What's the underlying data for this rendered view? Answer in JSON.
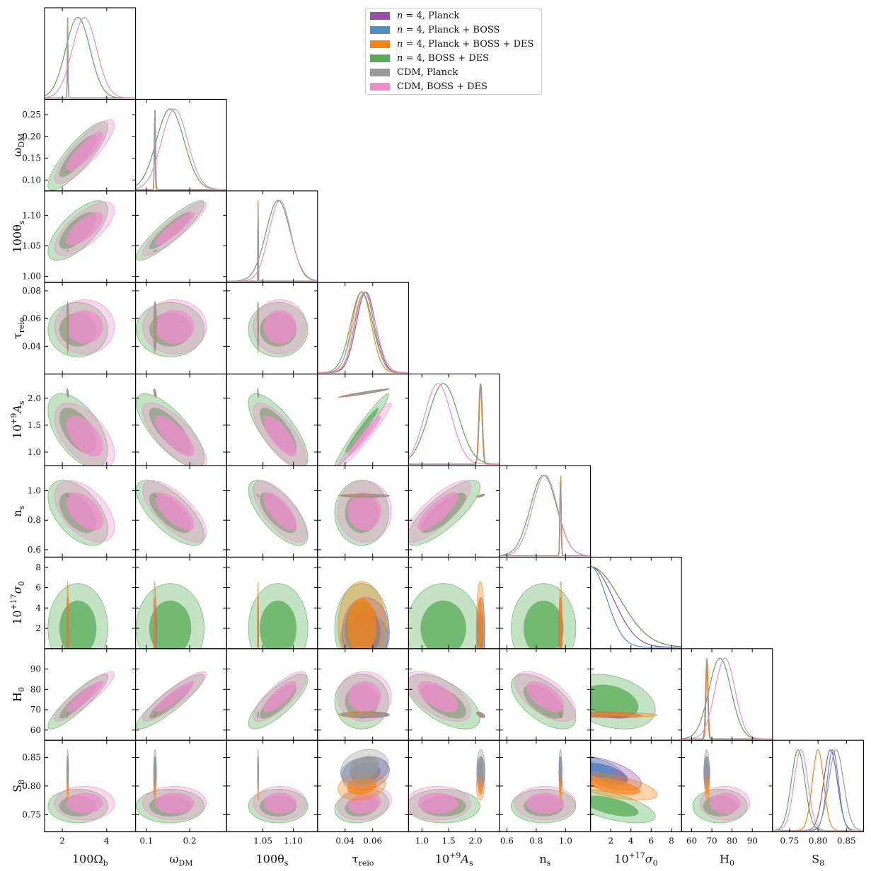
{
  "chart_data": {
    "type": "corner",
    "title": "",
    "parameters": [
      {
        "label": "100Ω_b",
        "range": [
          1.2,
          5.3
        ],
        "ticks": [
          2,
          4
        ]
      },
      {
        "label": "ω_DM",
        "range": [
          0.075,
          0.285
        ],
        "ticks": [
          0.1,
          0.2
        ]
      },
      {
        "label": "100θ_s",
        "range": [
          0.99,
          1.14
        ],
        "ticks": [
          1.05,
          1.1
        ]
      },
      {
        "label": "τ_reio",
        "range": [
          0.02,
          0.086
        ],
        "ticks": [
          0.04,
          0.06
        ]
      },
      {
        "label": "10^{+9}A_s",
        "range": [
          0.75,
          2.45
        ],
        "ticks": [
          1.0,
          1.5,
          2.0
        ]
      },
      {
        "label": "n_s",
        "range": [
          0.55,
          1.17
        ],
        "ticks": [
          0.6,
          0.8,
          1.0
        ]
      },
      {
        "label": "10^{+17}σ_0",
        "range": [
          0,
          9
        ],
        "ticks": [
          2,
          4,
          6,
          8
        ]
      },
      {
        "label": "H_0",
        "range": [
          55,
          100
        ],
        "ticks": [
          60,
          70,
          80,
          90
        ]
      },
      {
        "label": "S_8",
        "range": [
          0.72,
          0.88
        ],
        "ticks": [
          0.75,
          0.8,
          0.85
        ]
      }
    ],
    "axis_labels": {
      "x": [
        "100Ω",
        "ω",
        "100θ",
        "τ",
        "10",
        "n",
        "10",
        "H",
        "S"
      ],
      "x_sub": [
        "b",
        "DM",
        "s",
        "reio",
        "s",
        "s",
        "0",
        "0",
        "8"
      ],
      "x_sup": [
        "",
        "",
        "",
        "",
        "+9",
        "",
        "+17",
        "",
        ""
      ],
      "x_mid": [
        "",
        "",
        "",
        "",
        "A",
        "",
        "σ",
        "",
        ""
      ],
      "y_rows": [
        "",
        "ω",
        "100θ",
        "τ",
        "10",
        "n",
        "10",
        "H",
        "S"
      ],
      "y_sub": [
        "",
        "DM",
        "s",
        "reio",
        "s",
        "s",
        "0",
        "0",
        "8"
      ],
      "y_sup": [
        "",
        "",
        "",
        "",
        "+9",
        "",
        "+17",
        "",
        ""
      ],
      "y_mid": [
        "",
        "",
        "",
        "",
        "A",
        "",
        "σ",
        "",
        ""
      ]
    },
    "tick_labels": {
      "x": [
        [
          "2",
          "4"
        ],
        [
          "0.1",
          "0.2"
        ],
        [
          "1.05",
          "1.10"
        ],
        [
          "0.04",
          "0.06"
        ],
        [
          "1.0",
          "1.5",
          "2.0"
        ],
        [
          "0.6",
          "0.8",
          "1.0"
        ],
        [
          "2",
          "4",
          "6",
          "8"
        ],
        [
          "60",
          "70",
          "80",
          "90"
        ],
        [
          "0.75",
          "0.80",
          "0.85"
        ]
      ],
      "y": [
        [],
        [
          "0.10",
          "0.15",
          "0.20",
          "0.25"
        ],
        [
          "1.00",
          "1.05",
          "1.10"
        ],
        [
          "0.04",
          "0.06",
          "0.08"
        ],
        [
          "1.0",
          "1.5",
          "2.0"
        ],
        [
          "0.6",
          "0.8",
          "1.0"
        ],
        [
          "2",
          "4",
          "6",
          "8"
        ],
        [
          "60",
          "70",
          "80",
          "90"
        ],
        [
          "0.75",
          "0.80",
          "0.85"
        ]
      ]
    },
    "y_ticks": [
      [],
      [
        0.1,
        0.15,
        0.2,
        0.25
      ],
      [
        1.0,
        1.05,
        1.1
      ],
      [
        0.04,
        0.06,
        0.08
      ],
      [
        1.0,
        1.5,
        2.0
      ],
      [
        0.6,
        0.8,
        1.0
      ],
      [
        2,
        4,
        6,
        8
      ],
      [
        60,
        70,
        80,
        90
      ],
      [
        0.75,
        0.8,
        0.85
      ]
    ],
    "series": [
      {
        "name": "n = 4, Planck",
        "legend_prefix": "n",
        "legend_rest": " = 4, Planck",
        "color": "#9a4fa8",
        "mean": [
          2.24,
          0.12,
          1.0419,
          0.055,
          2.1,
          0.965,
          1.6,
          67.5,
          0.822
        ],
        "sd": [
          0.015,
          0.0013,
          0.0003,
          0.007,
          0.03,
          0.004,
          1.4,
          0.6,
          0.012
        ]
      },
      {
        "name": "n = 4, Planck + BOSS",
        "legend_prefix": "n",
        "legend_rest": " = 4, Planck + BOSS",
        "color": "#4f8fc4",
        "mean": [
          2.24,
          0.12,
          1.0419,
          0.054,
          2.1,
          0.966,
          1.1,
          67.6,
          0.826
        ],
        "sd": [
          0.014,
          0.0011,
          0.0003,
          0.007,
          0.03,
          0.004,
          1.0,
          0.5,
          0.01
        ]
      },
      {
        "name": "n = 4, Planck + BOSS + DES",
        "legend_prefix": "n",
        "legend_rest": " = 4, Planck + BOSS + DES",
        "color": "#f58518",
        "mean": [
          2.24,
          0.119,
          1.042,
          0.052,
          2.09,
          0.967,
          2.2,
          67.7,
          0.8
        ],
        "sd": [
          0.014,
          0.001,
          0.0003,
          0.007,
          0.03,
          0.004,
          1.8,
          0.5,
          0.01
        ]
      },
      {
        "name": "n = 4, BOSS + DES",
        "legend_prefix": "n",
        "legend_rest": " = 4, BOSS + DES",
        "color": "#57ab57",
        "mean": [
          2.7,
          0.155,
          1.075,
          0.052,
          1.4,
          0.85,
          2.0,
          74.0,
          0.765
        ],
        "sd": [
          0.55,
          0.032,
          0.02,
          0.008,
          0.28,
          0.09,
          1.8,
          5.5,
          0.012
        ]
      },
      {
        "name": "CDM, Planck",
        "legend_prefix": "",
        "legend_rest": "CDM, Planck",
        "color": "#9a9a9a",
        "mean": [
          2.24,
          0.12,
          1.0419,
          0.054,
          2.1,
          0.965,
          0,
          67.4,
          0.832
        ],
        "sd": [
          0.015,
          0.0012,
          0.0003,
          0.007,
          0.03,
          0.004,
          0,
          0.5,
          0.013
        ]
      },
      {
        "name": "CDM, BOSS + DES",
        "legend_prefix": "",
        "legend_rest": "CDM, BOSS + DES",
        "color": "#f08ccd",
        "mean": [
          3.0,
          0.165,
          1.078,
          0.054,
          1.3,
          0.86,
          0,
          76.5,
          0.77
        ],
        "sd": [
          0.55,
          0.03,
          0.018,
          0.008,
          0.25,
          0.085,
          0,
          5.0,
          0.012
        ]
      }
    ],
    "legend_position": "top-center",
    "grid": false
  }
}
